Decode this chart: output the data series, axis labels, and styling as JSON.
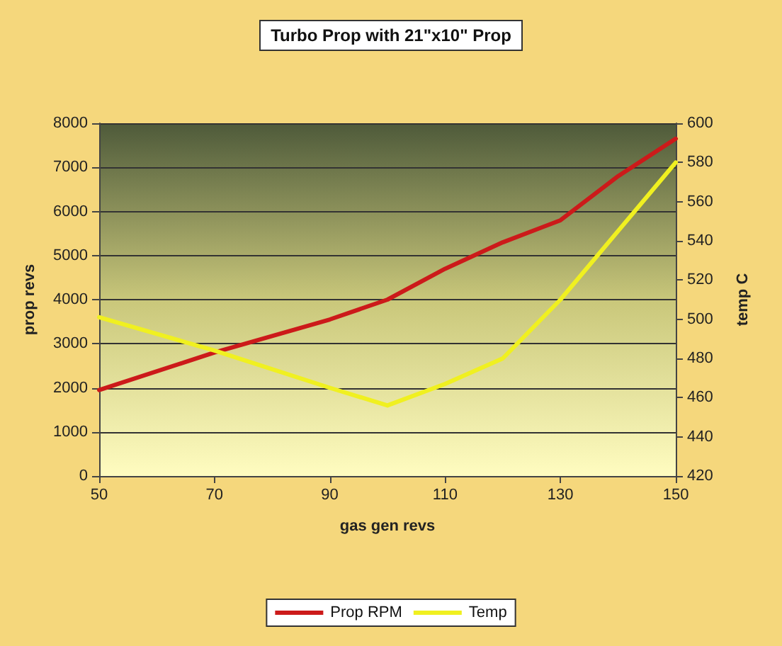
{
  "chart_data": {
    "type": "line",
    "title": "Turbo Prop with 21\"x10\" Prop",
    "xlabel": "gas gen revs",
    "ylabel": "prop revs",
    "y2label": "temp C",
    "xlim": [
      50,
      150
    ],
    "xticks": [
      50,
      70,
      90,
      110,
      130,
      150
    ],
    "ylim": [
      0,
      8000
    ],
    "yticks": [
      0,
      1000,
      2000,
      3000,
      4000,
      5000,
      6000,
      7000,
      8000
    ],
    "y2lim": [
      420,
      600
    ],
    "y2ticks": [
      420,
      440,
      460,
      480,
      500,
      520,
      540,
      560,
      580,
      600
    ],
    "grid": "y",
    "legend": "bottom",
    "marker": "none",
    "line_style": "solid",
    "series": [
      {
        "name": "Prop RPM",
        "color": "#cc1a1a",
        "x": [
          50,
          70,
          90,
          100,
          110,
          120,
          130,
          140,
          150
        ],
        "values": [
          1950,
          2800,
          3550,
          4000,
          4700,
          5300,
          5800,
          6800,
          7650
        ]
      },
      {
        "name": "Temp",
        "color": "#f0f020",
        "axis": "y2",
        "x": [
          50,
          70,
          90,
          100,
          110,
          120,
          130,
          140,
          150
        ],
        "values": [
          501,
          484,
          465,
          456,
          467,
          480,
          510,
          545,
          580
        ]
      }
    ]
  }
}
